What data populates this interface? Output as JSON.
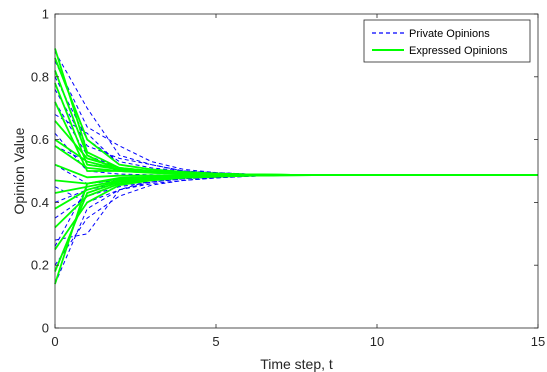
{
  "chart_data": {
    "type": "line",
    "title": "",
    "xlabel": "Time step, t",
    "ylabel": "Opinion Value",
    "xlim": [
      0,
      15
    ],
    "ylim": [
      0,
      1
    ],
    "x_ticks": [
      "0",
      "5",
      "10",
      "15"
    ],
    "y_ticks": [
      "0",
      "0.2",
      "0.4",
      "0.6",
      "0.8",
      "1"
    ],
    "legend": {
      "placement": "top-right",
      "entries": [
        "Private Opinions",
        "Expressed Opinions"
      ]
    },
    "colors": {
      "private": "#0000ff",
      "expressed": "#00ff00",
      "axis": "#262626"
    },
    "x": [
      0,
      1,
      2,
      3,
      4,
      5,
      6,
      7,
      8,
      9,
      10,
      11,
      12,
      13,
      14,
      15
    ],
    "converged_value": 0.487,
    "series": [
      {
        "name": "Private Opinions",
        "style": "dashed",
        "lines": [
          [
            0.88,
            0.7,
            0.55,
            0.52,
            0.5,
            0.495,
            0.49,
            0.488,
            0.487,
            0.487,
            0.487,
            0.487,
            0.487,
            0.487,
            0.487,
            0.487
          ],
          [
            0.85,
            0.64,
            0.58,
            0.53,
            0.505,
            0.495,
            0.49,
            0.488,
            0.487,
            0.487,
            0.487,
            0.487,
            0.487,
            0.487,
            0.487,
            0.487
          ],
          [
            0.8,
            0.6,
            0.53,
            0.51,
            0.5,
            0.492,
            0.489,
            0.488,
            0.487,
            0.487,
            0.487,
            0.487,
            0.487,
            0.487,
            0.487,
            0.487
          ],
          [
            0.76,
            0.58,
            0.54,
            0.52,
            0.5,
            0.494,
            0.49,
            0.488,
            0.487,
            0.487,
            0.487,
            0.487,
            0.487,
            0.487,
            0.487,
            0.487
          ],
          [
            0.72,
            0.55,
            0.51,
            0.5,
            0.495,
            0.49,
            0.488,
            0.487,
            0.487,
            0.487,
            0.487,
            0.487,
            0.487,
            0.487,
            0.487,
            0.487
          ],
          [
            0.68,
            0.62,
            0.52,
            0.505,
            0.497,
            0.492,
            0.489,
            0.488,
            0.487,
            0.487,
            0.487,
            0.487,
            0.487,
            0.487,
            0.487,
            0.487
          ],
          [
            0.62,
            0.5,
            0.49,
            0.488,
            0.487,
            0.487,
            0.487,
            0.487,
            0.487,
            0.487,
            0.487,
            0.487,
            0.487,
            0.487,
            0.487,
            0.487
          ],
          [
            0.58,
            0.53,
            0.5,
            0.495,
            0.49,
            0.488,
            0.487,
            0.487,
            0.487,
            0.487,
            0.487,
            0.487,
            0.487,
            0.487,
            0.487,
            0.487
          ],
          [
            0.52,
            0.46,
            0.47,
            0.475,
            0.48,
            0.484,
            0.486,
            0.487,
            0.487,
            0.487,
            0.487,
            0.487,
            0.487,
            0.487,
            0.487,
            0.487
          ],
          [
            0.45,
            0.4,
            0.44,
            0.46,
            0.47,
            0.478,
            0.483,
            0.486,
            0.487,
            0.487,
            0.487,
            0.487,
            0.487,
            0.487,
            0.487,
            0.487
          ],
          [
            0.4,
            0.44,
            0.46,
            0.47,
            0.478,
            0.482,
            0.485,
            0.486,
            0.487,
            0.487,
            0.487,
            0.487,
            0.487,
            0.487,
            0.487,
            0.487
          ],
          [
            0.35,
            0.42,
            0.45,
            0.465,
            0.475,
            0.48,
            0.484,
            0.486,
            0.487,
            0.487,
            0.487,
            0.487,
            0.487,
            0.487,
            0.487,
            0.487
          ],
          [
            0.28,
            0.3,
            0.44,
            0.47,
            0.478,
            0.482,
            0.485,
            0.486,
            0.487,
            0.487,
            0.487,
            0.487,
            0.487,
            0.487,
            0.487,
            0.487
          ],
          [
            0.2,
            0.35,
            0.42,
            0.455,
            0.47,
            0.478,
            0.483,
            0.486,
            0.487,
            0.487,
            0.487,
            0.487,
            0.487,
            0.487,
            0.487,
            0.487
          ],
          [
            0.14,
            0.38,
            0.44,
            0.465,
            0.475,
            0.48,
            0.484,
            0.486,
            0.487,
            0.487,
            0.487,
            0.487,
            0.487,
            0.487,
            0.487,
            0.487
          ],
          [
            0.26,
            0.45,
            0.47,
            0.478,
            0.482,
            0.485,
            0.486,
            0.487,
            0.487,
            0.487,
            0.487,
            0.487,
            0.487,
            0.487,
            0.487,
            0.487
          ]
        ]
      },
      {
        "name": "Expressed Opinions",
        "style": "solid",
        "lines": [
          [
            0.89,
            0.56,
            0.51,
            0.5,
            0.495,
            0.491,
            0.489,
            0.488,
            0.487,
            0.487,
            0.487,
            0.487,
            0.487,
            0.487,
            0.487,
            0.487
          ],
          [
            0.86,
            0.6,
            0.52,
            0.505,
            0.497,
            0.492,
            0.489,
            0.488,
            0.487,
            0.487,
            0.487,
            0.487,
            0.487,
            0.487,
            0.487,
            0.487
          ],
          [
            0.82,
            0.55,
            0.5,
            0.495,
            0.492,
            0.49,
            0.488,
            0.487,
            0.487,
            0.487,
            0.487,
            0.487,
            0.487,
            0.487,
            0.487,
            0.487
          ],
          [
            0.78,
            0.52,
            0.505,
            0.498,
            0.494,
            0.491,
            0.489,
            0.488,
            0.487,
            0.487,
            0.487,
            0.487,
            0.487,
            0.487,
            0.487,
            0.487
          ],
          [
            0.72,
            0.5,
            0.5,
            0.495,
            0.492,
            0.49,
            0.488,
            0.487,
            0.487,
            0.487,
            0.487,
            0.487,
            0.487,
            0.487,
            0.487,
            0.487
          ],
          [
            0.66,
            0.54,
            0.51,
            0.5,
            0.495,
            0.491,
            0.489,
            0.488,
            0.487,
            0.487,
            0.487,
            0.487,
            0.487,
            0.487,
            0.487,
            0.487
          ],
          [
            0.58,
            0.51,
            0.5,
            0.494,
            0.491,
            0.489,
            0.488,
            0.487,
            0.487,
            0.487,
            0.487,
            0.487,
            0.487,
            0.487,
            0.487,
            0.487
          ],
          [
            0.52,
            0.48,
            0.485,
            0.486,
            0.487,
            0.487,
            0.487,
            0.487,
            0.487,
            0.487,
            0.487,
            0.487,
            0.487,
            0.487,
            0.487,
            0.487
          ],
          [
            0.47,
            0.46,
            0.478,
            0.482,
            0.485,
            0.486,
            0.487,
            0.487,
            0.487,
            0.487,
            0.487,
            0.487,
            0.487,
            0.487,
            0.487,
            0.487
          ],
          [
            0.43,
            0.45,
            0.47,
            0.478,
            0.482,
            0.485,
            0.486,
            0.487,
            0.487,
            0.487,
            0.487,
            0.487,
            0.487,
            0.487,
            0.487,
            0.487
          ],
          [
            0.38,
            0.44,
            0.468,
            0.477,
            0.482,
            0.485,
            0.486,
            0.487,
            0.487,
            0.487,
            0.487,
            0.487,
            0.487,
            0.487,
            0.487,
            0.487
          ],
          [
            0.32,
            0.42,
            0.46,
            0.472,
            0.479,
            0.483,
            0.485,
            0.486,
            0.487,
            0.487,
            0.487,
            0.487,
            0.487,
            0.487,
            0.487,
            0.487
          ],
          [
            0.25,
            0.4,
            0.455,
            0.47,
            0.478,
            0.482,
            0.485,
            0.486,
            0.487,
            0.487,
            0.487,
            0.487,
            0.487,
            0.487,
            0.487,
            0.487
          ],
          [
            0.18,
            0.43,
            0.465,
            0.475,
            0.48,
            0.484,
            0.486,
            0.487,
            0.487,
            0.487,
            0.487,
            0.487,
            0.487,
            0.487,
            0.487,
            0.487
          ],
          [
            0.14,
            0.46,
            0.475,
            0.48,
            0.483,
            0.485,
            0.486,
            0.487,
            0.487,
            0.487,
            0.487,
            0.487,
            0.487,
            0.487,
            0.487,
            0.487
          ],
          [
            0.6,
            0.53,
            0.505,
            0.497,
            0.493,
            0.49,
            0.488,
            0.487,
            0.487,
            0.487,
            0.487,
            0.487,
            0.487,
            0.487,
            0.487,
            0.487
          ]
        ]
      }
    ]
  }
}
